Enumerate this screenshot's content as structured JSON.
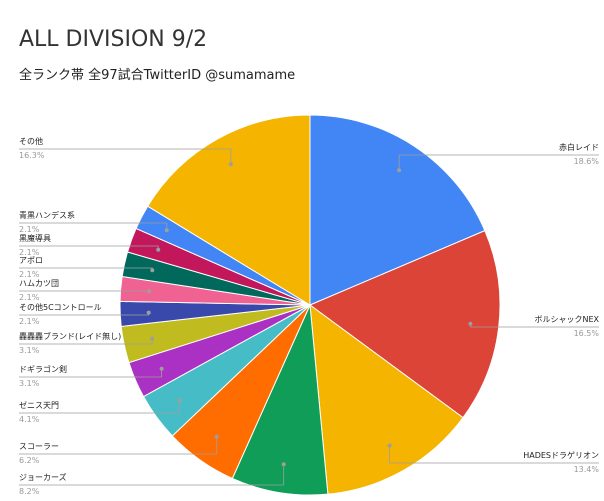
{
  "chart_data": {
    "type": "pie",
    "title": "ALL DIVISION 9/2",
    "subtitle": "全ランク帯 全97試合TwitterID @sumamame",
    "slices": [
      {
        "label": "赤白レイド",
        "value": 18.6,
        "pct_label": "18.6%",
        "color": "#4285F4"
      },
      {
        "label": "ボルシャックNEX",
        "value": 16.5,
        "pct_label": "16.5%",
        "color": "#DB4437"
      },
      {
        "label": "HADESドラゲリオン",
        "value": 13.4,
        "pct_label": "13.4%",
        "color": "#F4B400"
      },
      {
        "label": "ジョーカーズ",
        "value": 8.2,
        "pct_label": "8.2%",
        "color": "#0F9D58"
      },
      {
        "label": "スコーラー",
        "value": 6.2,
        "pct_label": "6.2%",
        "color": "#FF6D00"
      },
      {
        "label": "ゼニス天門",
        "value": 4.1,
        "pct_label": "4.1%",
        "color": "#46BDC6"
      },
      {
        "label": "ドギラゴン剣",
        "value": 3.1,
        "pct_label": "3.1%",
        "color": "#AB30C4"
      },
      {
        "label": "轟轟轟ブランド(レイド無し)",
        "value": 3.1,
        "pct_label": "3.1%",
        "color": "#C0BB1E"
      },
      {
        "label": "その他5Cコントロール",
        "value": 2.1,
        "pct_label": "2.1%",
        "color": "#3949AB"
      },
      {
        "label": "ハムカツ団",
        "value": 2.1,
        "pct_label": "2.1%",
        "color": "#F06292"
      },
      {
        "label": "アポロ",
        "value": 2.1,
        "pct_label": "2.1%",
        "color": "#00695C"
      },
      {
        "label": "黒魔導具",
        "value": 2.1,
        "pct_label": "2.1%",
        "color": "#C2185B"
      },
      {
        "label": "青黒ハンデス系",
        "value": 2.1,
        "pct_label": "2.1%",
        "color": "#4285F4"
      },
      {
        "label": "その他",
        "value": 16.3,
        "pct_label": "16.3%",
        "color": "#F4B400"
      }
    ],
    "legend": "none",
    "label_color": "#222222",
    "pct_color": "#999999",
    "leader_color": "#9E9E9E"
  }
}
